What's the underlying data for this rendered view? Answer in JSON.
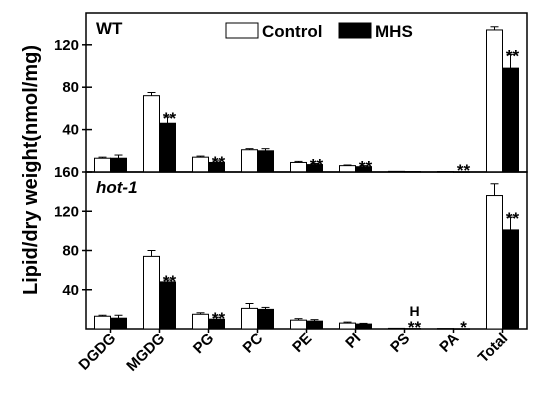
{
  "chart_data": {
    "type": "bar",
    "ylabel": "Lipid/dry weight(nmol/mg)",
    "categories": [
      "DGDG",
      "MGDG",
      "PG",
      "PC",
      "PE",
      "PI",
      "PS",
      "PA",
      "Total"
    ],
    "legend": {
      "placement": "top-center",
      "entries": [
        "Control",
        "MHS"
      ]
    },
    "series_colors": {
      "Control": "#ffffff",
      "MHS": "#000000"
    },
    "panels": [
      {
        "title": "WT",
        "ylim": [
          0,
          150
        ],
        "yticks": [
          "40",
          "80",
          "120"
        ],
        "series": [
          {
            "name": "Control",
            "values": [
              13,
              72,
              14,
              21,
              9,
              6,
              0.6,
              0.4,
              134
            ],
            "errors": [
              1,
              3,
              1,
              1,
              1,
              0.6,
              0.2,
              0.2,
              3
            ]
          },
          {
            "name": "MHS",
            "values": [
              13,
              46,
              9,
              20,
              7,
              5,
              0.4,
              0.2,
              98
            ],
            "errors": [
              3,
              6,
              1.5,
              2,
              1,
              1,
              0.1,
              0.1,
              13
            ]
          }
        ],
        "annotations": [
          {
            "category": "MGDG",
            "text": "**"
          },
          {
            "category": "PG",
            "text": "**"
          },
          {
            "category": "PE",
            "text": "**"
          },
          {
            "category": "PI",
            "text": "**"
          },
          {
            "category": "PA",
            "text": "**"
          },
          {
            "category": "Total",
            "text": "**"
          }
        ]
      },
      {
        "title": "hot-1",
        "ylim": [
          0,
          160
        ],
        "yticks": [
          "40",
          "80",
          "120",
          "160"
        ],
        "series": [
          {
            "name": "Control",
            "values": [
              13,
              74,
              15,
              21,
              9,
              6,
              0.6,
              0.4,
              136
            ],
            "errors": [
              1,
              6,
              1.5,
              5,
              1.5,
              1,
              0.2,
              0.2,
              12
            ]
          },
          {
            "name": "MHS",
            "values": [
              11,
              48,
              10,
              20,
              8,
              5,
              0.4,
              0.2,
              101
            ],
            "errors": [
              3,
              2,
              2,
              2,
              1.5,
              0.7,
              0.1,
              0.1,
              13
            ]
          }
        ],
        "annotations": [
          {
            "category": "MGDG",
            "text": "**"
          },
          {
            "category": "PG",
            "text": "**"
          },
          {
            "category": "PS",
            "text": "**",
            "extra": "H"
          },
          {
            "category": "PA",
            "text": "*"
          },
          {
            "category": "Total",
            "text": "**"
          }
        ]
      }
    ]
  }
}
